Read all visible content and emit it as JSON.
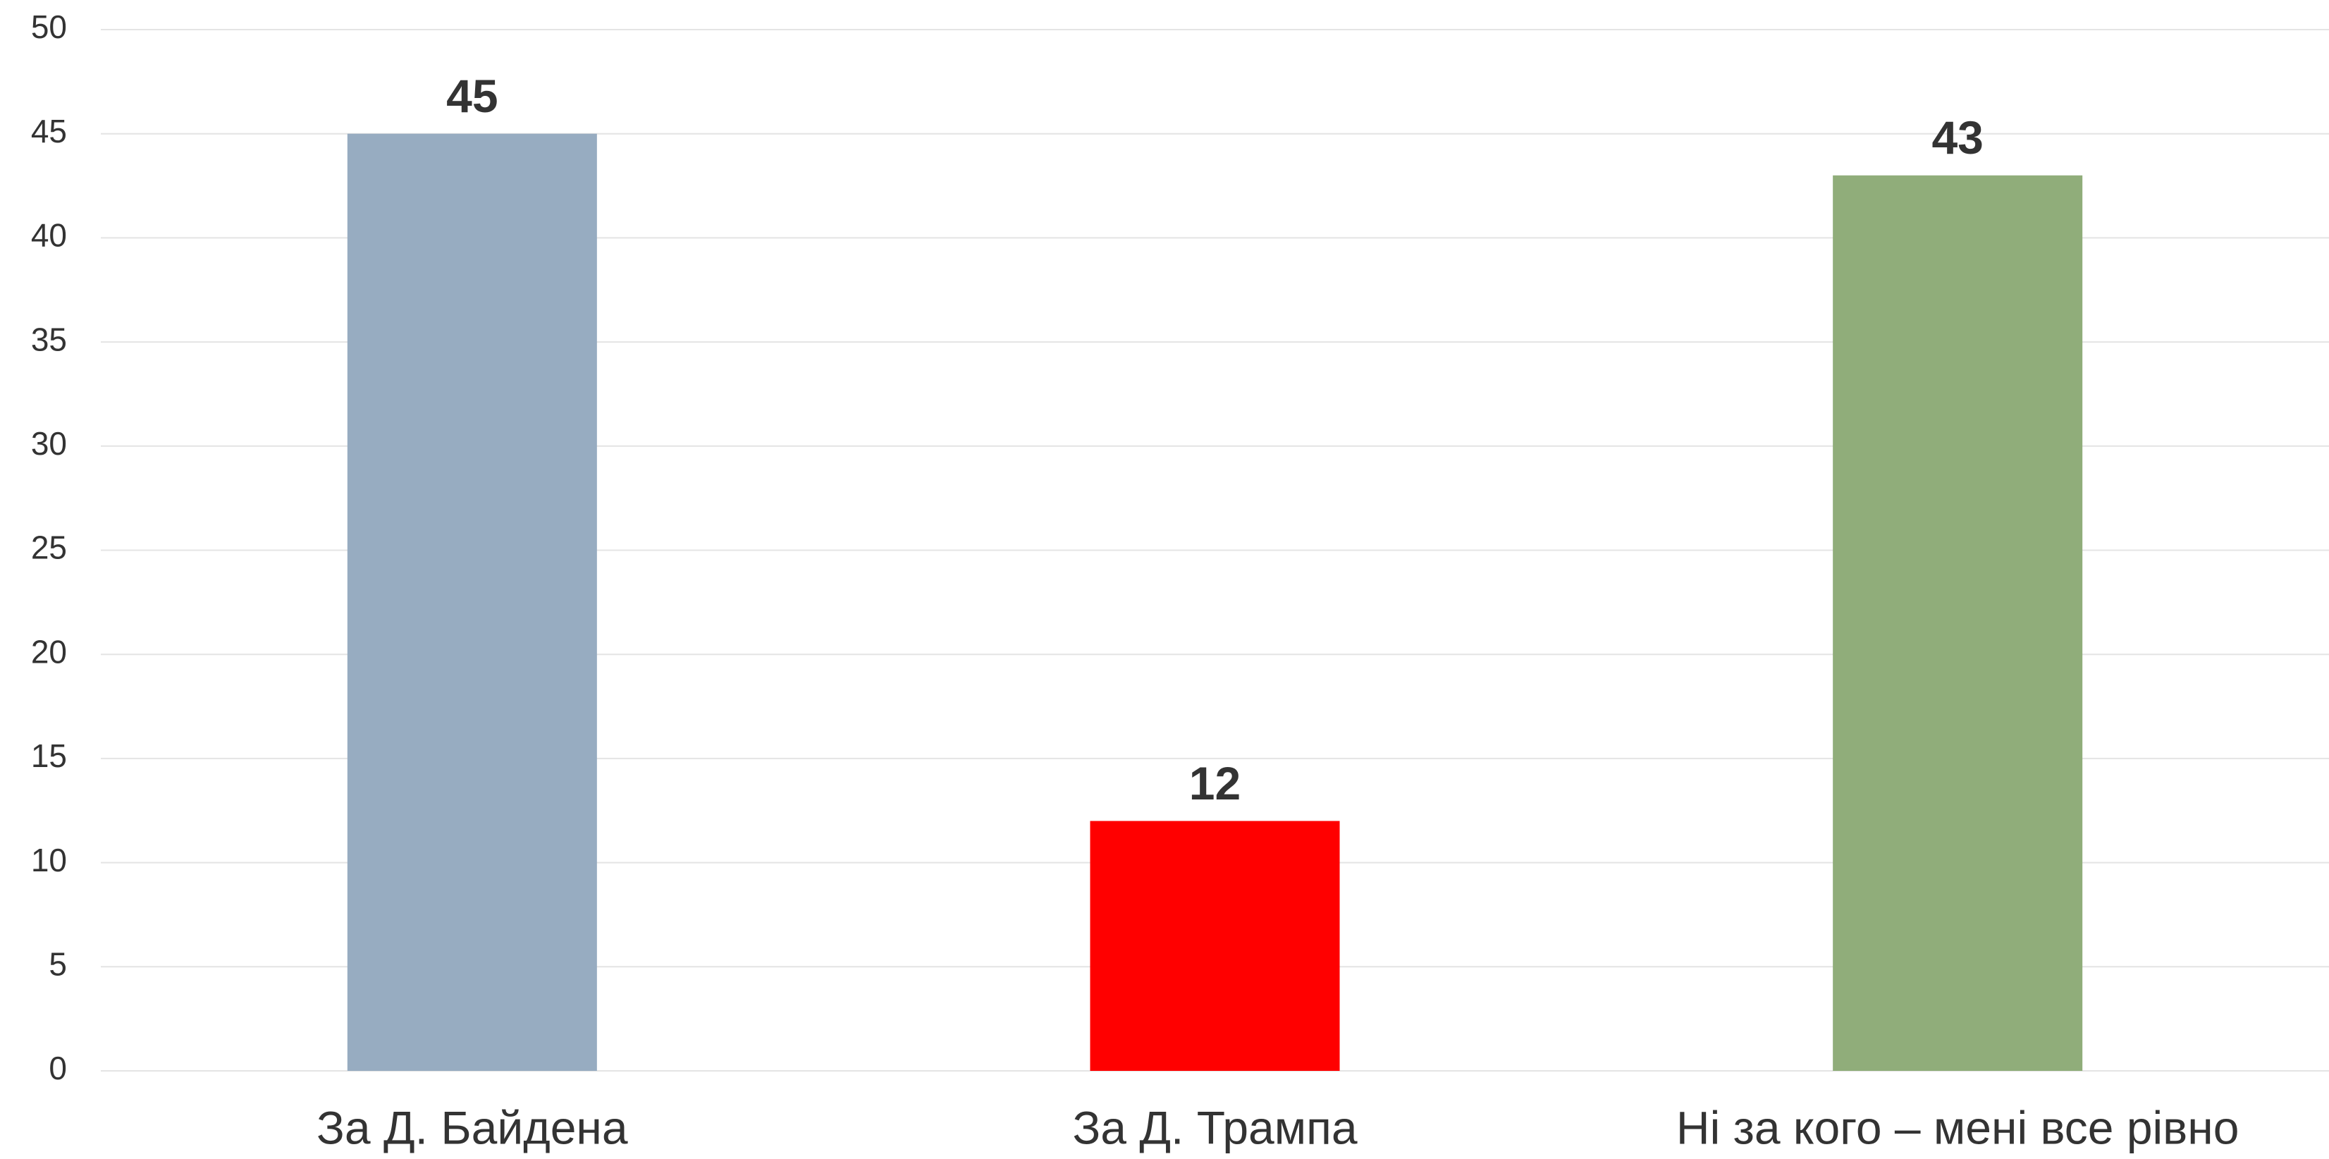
{
  "chart_data": {
    "type": "bar",
    "categories": [
      "За Д. Байдена",
      "За Д. Трампа",
      "Ні за кого – мені все рівно"
    ],
    "values": [
      45,
      12,
      43
    ],
    "colors": [
      "#97acc1",
      "#ff0000",
      "#90ad7a"
    ],
    "ylim": [
      0,
      50
    ],
    "yticks": [
      0,
      5,
      10,
      15,
      20,
      25,
      30,
      35,
      40,
      45,
      50
    ],
    "grid": true
  }
}
